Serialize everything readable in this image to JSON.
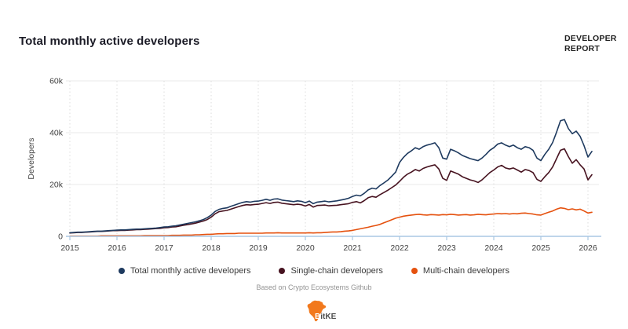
{
  "header": {
    "title": "Total monthly active developers",
    "badge_line1": "DEVELOPER",
    "badge_line2": "REPORT"
  },
  "chart_data": {
    "type": "line",
    "title": "Total monthly active developers",
    "xlabel": "",
    "ylabel": "Developers",
    "grid": "horizontal solid at 20k/40k/60k, vertical dotted at each year",
    "legend_position": "bottom",
    "x_axis": {
      "start_year": 2015,
      "sampling": "monthly",
      "end_point": "Feb 2026",
      "tick_labels": [
        "2015",
        "2016",
        "2017",
        "2018",
        "2019",
        "2020",
        "2021",
        "2022",
        "2023",
        "2024",
        "2025",
        "2026"
      ]
    },
    "y_axis": {
      "unit": "developers",
      "range_k": [
        0,
        60
      ],
      "tick_values_k": [
        0,
        20,
        40,
        60
      ],
      "tick_labels": [
        "0",
        "20k",
        "40k",
        "60k"
      ]
    },
    "colors": {
      "axis_line": "#aac7e3",
      "grid_line": "#e9e9e9",
      "grid_dotted": "#dcdcdc"
    },
    "series": [
      {
        "name": "Total monthly active developers",
        "color": "#1e3a5f",
        "values_k": [
          1.4,
          1.5,
          1.6,
          1.6,
          1.7,
          1.8,
          1.9,
          2.0,
          2.0,
          2.1,
          2.2,
          2.3,
          2.4,
          2.5,
          2.5,
          2.6,
          2.7,
          2.8,
          2.8,
          2.9,
          3.0,
          3.1,
          3.2,
          3.4,
          3.6,
          3.7,
          3.9,
          4.1,
          4.4,
          4.7,
          5.0,
          5.3,
          5.6,
          6.0,
          6.5,
          7.2,
          8.2,
          9.6,
          10.4,
          10.8,
          11.0,
          11.6,
          12.1,
          12.6,
          13.1,
          13.4,
          13.2,
          13.5,
          13.6,
          13.9,
          14.3,
          13.9,
          14.4,
          14.5,
          14.0,
          13.8,
          13.6,
          13.4,
          13.7,
          13.5,
          13.0,
          13.6,
          12.6,
          13.2,
          13.4,
          13.6,
          13.3,
          13.5,
          13.7,
          14.0,
          14.3,
          14.7,
          15.4,
          15.9,
          15.6,
          16.6,
          17.9,
          18.6,
          18.3,
          19.6,
          20.6,
          21.7,
          23.2,
          24.8,
          28.5,
          30.5,
          32.0,
          33.0,
          34.2,
          33.6,
          34.6,
          35.2,
          35.6,
          36.1,
          34.2,
          30.2,
          29.8,
          33.6,
          33.0,
          32.2,
          31.2,
          30.6,
          30.0,
          29.6,
          29.2,
          30.2,
          31.6,
          33.2,
          34.2,
          35.6,
          36.1,
          35.2,
          34.6,
          35.2,
          34.2,
          33.6,
          34.6,
          34.2,
          33.2,
          30.2,
          29.2,
          31.6,
          33.6,
          36.2,
          40.2,
          44.6,
          45.1,
          41.6,
          39.6,
          40.6,
          38.6,
          35.0,
          30.6,
          32.8
        ]
      },
      {
        "name": "Single-chain developers",
        "color": "#471320",
        "values_k": [
          1.3,
          1.4,
          1.5,
          1.5,
          1.6,
          1.7,
          1.8,
          1.9,
          1.9,
          2.0,
          2.1,
          2.2,
          2.2,
          2.3,
          2.3,
          2.4,
          2.5,
          2.6,
          2.6,
          2.7,
          2.8,
          2.9,
          3.0,
          3.1,
          3.3,
          3.4,
          3.6,
          3.7,
          4.0,
          4.3,
          4.5,
          4.8,
          5.1,
          5.5,
          5.9,
          6.5,
          7.4,
          8.7,
          9.5,
          9.8,
          10.0,
          10.5,
          11.0,
          11.5,
          11.9,
          12.2,
          12.1,
          12.3,
          12.4,
          12.7,
          13.0,
          12.7,
          13.1,
          13.2,
          12.8,
          12.6,
          12.4,
          12.2,
          12.4,
          12.2,
          11.7,
          12.3,
          11.3,
          11.9,
          12.0,
          12.1,
          11.8,
          11.9,
          12.0,
          12.2,
          12.4,
          12.6,
          13.1,
          13.4,
          12.9,
          13.8,
          14.9,
          15.4,
          15.1,
          16.1,
          16.9,
          17.8,
          18.8,
          19.8,
          21.2,
          22.8,
          24.0,
          24.8,
          25.8,
          25.2,
          26.2,
          26.8,
          27.2,
          27.6,
          26.0,
          22.4,
          21.6,
          25.2,
          24.6,
          24.0,
          23.0,
          22.4,
          21.8,
          21.4,
          20.8,
          21.8,
          23.2,
          24.6,
          25.6,
          26.8,
          27.4,
          26.4,
          26.0,
          26.4,
          25.6,
          24.8,
          25.8,
          25.4,
          24.6,
          22.0,
          21.2,
          23.0,
          24.6,
          26.8,
          30.0,
          33.2,
          33.8,
          30.8,
          28.2,
          29.6,
          27.6,
          26.0,
          21.8,
          23.8
        ]
      },
      {
        "name": "Multi-chain developers",
        "color": "#e5510e",
        "values_k": [
          0.1,
          0.1,
          0.1,
          0.1,
          0.1,
          0.1,
          0.1,
          0.1,
          0.2,
          0.2,
          0.2,
          0.2,
          0.2,
          0.2,
          0.2,
          0.2,
          0.2,
          0.2,
          0.2,
          0.3,
          0.3,
          0.3,
          0.3,
          0.3,
          0.3,
          0.3,
          0.4,
          0.4,
          0.4,
          0.5,
          0.5,
          0.5,
          0.6,
          0.6,
          0.7,
          0.8,
          0.8,
          0.9,
          1.0,
          1.0,
          1.1,
          1.1,
          1.1,
          1.2,
          1.2,
          1.2,
          1.2,
          1.2,
          1.2,
          1.2,
          1.3,
          1.3,
          1.3,
          1.4,
          1.3,
          1.3,
          1.3,
          1.3,
          1.3,
          1.3,
          1.3,
          1.4,
          1.3,
          1.4,
          1.4,
          1.5,
          1.6,
          1.7,
          1.7,
          1.8,
          2.0,
          2.1,
          2.3,
          2.6,
          2.9,
          3.2,
          3.5,
          3.9,
          4.2,
          4.6,
          5.2,
          5.8,
          6.4,
          7.0,
          7.4,
          7.8,
          8.0,
          8.2,
          8.4,
          8.5,
          8.3,
          8.2,
          8.4,
          8.3,
          8.2,
          8.4,
          8.3,
          8.5,
          8.4,
          8.2,
          8.3,
          8.4,
          8.2,
          8.3,
          8.5,
          8.4,
          8.3,
          8.5,
          8.6,
          8.8,
          8.7,
          8.8,
          8.6,
          8.8,
          8.7,
          8.9,
          9.0,
          8.8,
          8.6,
          8.3,
          8.2,
          8.8,
          9.3,
          9.8,
          10.5,
          11.0,
          10.8,
          10.3,
          10.6,
          10.2,
          10.5,
          9.8,
          9.0,
          9.3
        ]
      }
    ]
  },
  "footer": {
    "attribution": "Based on Crypto Ecosystems Github",
    "logo_b": "B",
    "logo_rest": "itKE"
  }
}
